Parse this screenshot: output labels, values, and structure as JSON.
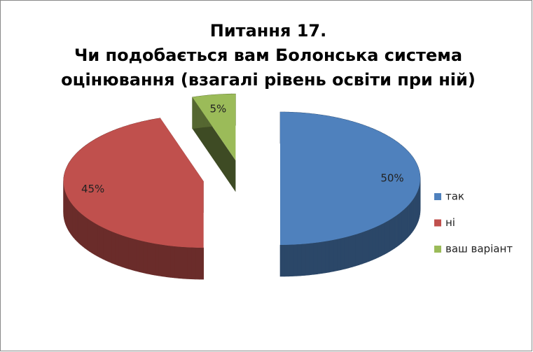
{
  "chart_data": {
    "type": "pie3d",
    "title": [
      "Питання 17.",
      "Чи подобається вам Болонська система",
      "оцінювання (взагалі рівень освіти при ній)"
    ],
    "categories": [
      "так",
      "ні",
      "ваш варіант"
    ],
    "values": [
      50,
      45,
      5
    ],
    "value_labels": [
      "50%",
      "45%",
      "5%"
    ],
    "colors": [
      "#4f81bd",
      "#c0504d",
      "#9bbb59"
    ],
    "legend": "right"
  }
}
